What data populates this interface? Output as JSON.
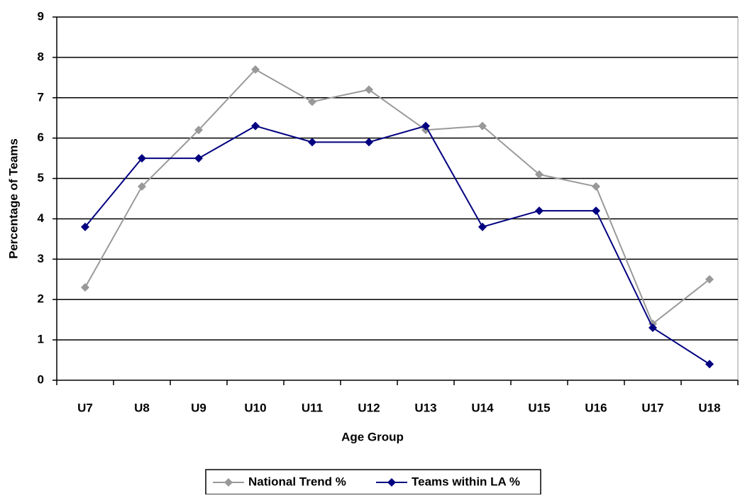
{
  "chart_data": {
    "type": "line",
    "x_label": "Age Group",
    "y_label": "Percentage of Teams",
    "categories": [
      "U7",
      "U8",
      "U9",
      "U10",
      "U11",
      "U12",
      "U13",
      "U14",
      "U15",
      "U16",
      "U17",
      "U18"
    ],
    "series": [
      {
        "name": "National Trend %",
        "color": "#999999",
        "values": [
          2.3,
          4.8,
          6.2,
          7.7,
          6.9,
          7.2,
          6.2,
          6.3,
          5.1,
          4.8,
          1.4,
          2.5
        ]
      },
      {
        "name": "Teams within LA %",
        "color": "#000080",
        "values": [
          3.8,
          5.5,
          5.5,
          6.3,
          5.9,
          5.9,
          6.3,
          3.8,
          4.2,
          4.2,
          1.3,
          0.4
        ]
      }
    ],
    "ylim": [
      0,
      9
    ],
    "yticks": [
      0,
      1,
      2,
      3,
      4,
      5,
      6,
      7,
      8,
      9
    ],
    "grid": true,
    "legend": "bottom"
  }
}
